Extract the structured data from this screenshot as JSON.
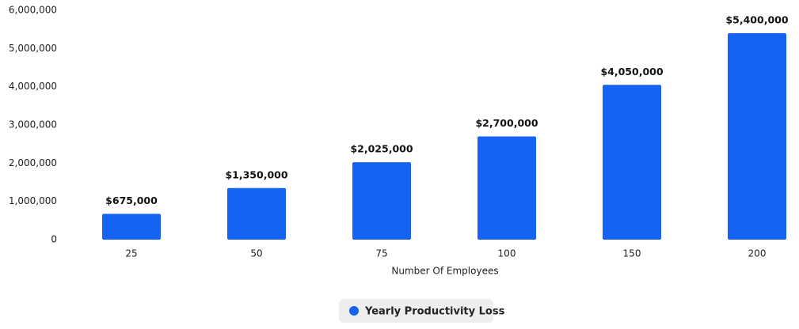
{
  "chart_data": {
    "type": "bar",
    "x_label": "Number Of Employees",
    "categories": [
      "25",
      "50",
      "75",
      "100",
      "150",
      "200"
    ],
    "series": [
      {
        "name": "Yearly Productivity Loss",
        "color": "#1463f3",
        "values": [
          675000,
          1350000,
          2025000,
          2700000,
          4050000,
          5400000
        ],
        "value_labels": [
          "$675,000",
          "$1,350,000",
          "$2,025,000",
          "$2,700,000",
          "$4,050,000",
          "$5,400,000"
        ]
      }
    ],
    "ylim": [
      0,
      6000000
    ],
    "yticks": [
      0,
      {
        "value": 1000000,
        "label": "1,000,000"
      },
      {
        "value": 2000000,
        "label": "2,000,000"
      },
      {
        "value": 3000000,
        "label": "3,000,000"
      },
      {
        "value": 4000000,
        "label": "4,000,000"
      },
      {
        "value": 5000000,
        "label": "5,000,000"
      },
      {
        "value": 6000000,
        "label": "6,000,000"
      }
    ],
    "grid": false,
    "legend": "bottom"
  }
}
